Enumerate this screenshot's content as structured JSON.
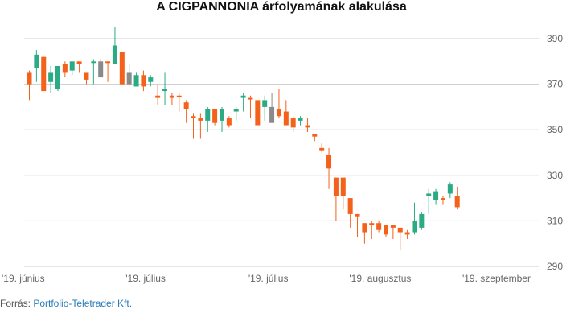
{
  "title": "A CIGPANNONIA árfolyamának alakulása",
  "source": {
    "label": "Forrás: ",
    "link_text": "Portfolio-Teletrader Kft."
  },
  "colors": {
    "up": "#2bab84",
    "down": "#f4611a",
    "neutral": "#8a8a8a",
    "grid": "#cccccc",
    "axis_text": "#666666"
  },
  "chart_data": {
    "type": "candlestick",
    "title": "A CIGPANNONIA árfolyamának alakulása",
    "xlabel": "",
    "ylabel": "",
    "ylim": [
      290,
      395
    ],
    "y_ticks": [
      290,
      310,
      330,
      350,
      370,
      390
    ],
    "y_axis_side": "right",
    "grid": "horizontal",
    "x_labels": [
      {
        "text": "'19. június",
        "index": 0
      },
      {
        "text": "'19. július",
        "index": 16.3
      },
      {
        "text": "'19. július",
        "index": 33.5
      },
      {
        "text": "'19. augusztus",
        "index": 49.2
      },
      {
        "text": "'19. szeptember",
        "index": 65.5
      }
    ],
    "candles": [
      {
        "open": 375,
        "high": 376,
        "low": 363,
        "close": 370,
        "color": "down"
      },
      {
        "open": 377,
        "high": 385,
        "low": 371,
        "close": 383,
        "color": "up"
      },
      {
        "open": 382,
        "high": 382,
        "low": 367,
        "close": 367,
        "color": "down"
      },
      {
        "open": 371,
        "high": 378,
        "low": 366,
        "close": 375,
        "color": "up"
      },
      {
        "open": 368,
        "high": 378,
        "low": 367,
        "close": 378,
        "color": "up"
      },
      {
        "open": 379,
        "high": 380,
        "low": 373,
        "close": 375,
        "color": "down"
      },
      {
        "open": 376,
        "high": 380,
        "low": 374,
        "close": 380,
        "color": "up"
      },
      {
        "open": 380,
        "high": 380,
        "low": 375,
        "close": 379,
        "color": "down"
      },
      {
        "open": 375,
        "high": 375,
        "low": 370,
        "close": 372,
        "color": "down"
      },
      {
        "open": 380,
        "high": 381,
        "low": 370,
        "close": 380,
        "color": "up"
      },
      {
        "open": 373,
        "high": 381,
        "low": 373,
        "close": 380,
        "color": "neutral"
      },
      {
        "open": 380,
        "high": 380,
        "low": 371,
        "close": 380,
        "color": "down"
      },
      {
        "open": 379,
        "high": 395,
        "low": 379,
        "close": 387,
        "color": "up"
      },
      {
        "open": 384,
        "high": 384,
        "low": 370,
        "close": 370,
        "color": "down"
      },
      {
        "open": 375,
        "high": 379,
        "low": 369,
        "close": 370,
        "color": "neutral"
      },
      {
        "open": 369,
        "high": 375,
        "low": 369,
        "close": 374,
        "color": "up"
      },
      {
        "open": 374,
        "high": 376,
        "low": 367,
        "close": 369,
        "color": "down"
      },
      {
        "open": 371,
        "high": 374,
        "low": 369,
        "close": 373,
        "color": "up"
      },
      {
        "open": 365,
        "high": 370,
        "low": 361,
        "close": 364,
        "color": "down"
      },
      {
        "open": 367,
        "high": 375,
        "low": 361,
        "close": 368,
        "color": "up"
      },
      {
        "open": 365,
        "high": 366,
        "low": 361,
        "close": 364,
        "color": "down"
      },
      {
        "open": 365,
        "high": 366,
        "low": 358,
        "close": 365,
        "color": "down"
      },
      {
        "open": 362,
        "high": 363,
        "low": 353,
        "close": 359,
        "color": "down"
      },
      {
        "open": 356,
        "high": 357,
        "low": 346,
        "close": 355,
        "color": "down"
      },
      {
        "open": 355,
        "high": 357,
        "low": 346,
        "close": 354,
        "color": "down"
      },
      {
        "open": 354,
        "high": 360,
        "low": 349,
        "close": 359,
        "color": "up"
      },
      {
        "open": 359,
        "high": 359,
        "low": 352,
        "close": 353,
        "color": "down"
      },
      {
        "open": 354,
        "high": 360,
        "low": 349,
        "close": 359,
        "color": "up"
      },
      {
        "open": 355,
        "high": 356,
        "low": 351,
        "close": 352,
        "color": "down"
      },
      {
        "open": 358,
        "high": 360,
        "low": 354,
        "close": 359,
        "color": "up"
      },
      {
        "open": 364,
        "high": 366,
        "low": 358,
        "close": 365,
        "color": "up"
      },
      {
        "open": 364,
        "high": 365,
        "low": 355,
        "close": 364,
        "color": "down"
      },
      {
        "open": 363,
        "high": 363,
        "low": 353,
        "close": 352,
        "color": "down"
      },
      {
        "open": 360,
        "high": 365,
        "low": 354,
        "close": 363,
        "color": "up"
      },
      {
        "open": 360,
        "high": 366,
        "low": 354,
        "close": 353,
        "color": "neutral"
      },
      {
        "open": 359,
        "high": 368,
        "low": 355,
        "close": 356,
        "color": "down"
      },
      {
        "open": 358,
        "high": 363,
        "low": 352,
        "close": 352,
        "color": "down"
      },
      {
        "open": 355,
        "high": 356,
        "low": 349,
        "close": 351,
        "color": "down"
      },
      {
        "open": 354,
        "high": 356,
        "low": 352,
        "close": 355,
        "color": "up"
      },
      {
        "open": 352,
        "high": 355,
        "low": 349,
        "close": 351,
        "color": "down"
      },
      {
        "open": 348,
        "high": 348,
        "low": 345,
        "close": 347,
        "color": "down"
      },
      {
        "open": 342,
        "high": 344,
        "low": 340,
        "close": 341,
        "color": "down"
      },
      {
        "open": 339,
        "high": 342,
        "low": 324,
        "close": 333,
        "color": "down"
      },
      {
        "open": 329,
        "high": 329,
        "low": 310,
        "close": 321,
        "color": "down"
      },
      {
        "open": 329,
        "high": 329,
        "low": 315,
        "close": 321,
        "color": "down"
      },
      {
        "open": 320,
        "high": 320,
        "low": 307,
        "close": 313,
        "color": "down"
      },
      {
        "open": 313,
        "high": 313,
        "low": 303,
        "close": 312,
        "color": "down"
      },
      {
        "open": 309,
        "high": 309,
        "low": 300,
        "close": 305,
        "color": "down"
      },
      {
        "open": 309,
        "high": 310,
        "low": 302,
        "close": 308,
        "color": "down"
      },
      {
        "open": 309,
        "high": 310,
        "low": 305,
        "close": 306,
        "color": "down"
      },
      {
        "open": 308,
        "high": 308,
        "low": 303,
        "close": 304,
        "color": "down"
      },
      {
        "open": 308,
        "high": 308,
        "low": 302,
        "close": 307,
        "color": "down"
      },
      {
        "open": 307,
        "high": 307,
        "low": 297,
        "close": 305,
        "color": "down"
      },
      {
        "open": 305,
        "high": 306,
        "low": 302,
        "close": 304,
        "color": "down"
      },
      {
        "open": 305,
        "high": 318,
        "low": 304,
        "close": 310,
        "color": "up"
      },
      {
        "open": 307,
        "high": 314,
        "low": 306,
        "close": 313,
        "color": "up"
      },
      {
        "open": 321,
        "high": 324,
        "low": 313,
        "close": 322,
        "color": "up"
      },
      {
        "open": 319,
        "high": 324,
        "low": 317,
        "close": 323,
        "color": "up"
      },
      {
        "open": 320,
        "high": 321,
        "low": 317,
        "close": 320,
        "color": "down"
      },
      {
        "open": 322,
        "high": 327,
        "low": 320,
        "close": 326,
        "color": "up"
      },
      {
        "open": 321,
        "high": 325,
        "low": 315,
        "close": 316,
        "color": "down"
      }
    ]
  }
}
